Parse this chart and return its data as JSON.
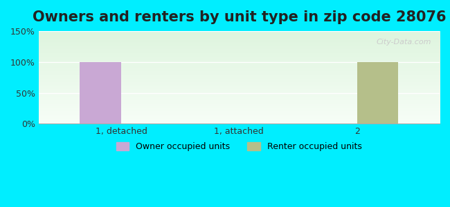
{
  "title": "Owners and renters by unit type in zip code 28076",
  "categories": [
    "1, detached",
    "1, attached",
    "2"
  ],
  "owner_values": [
    100,
    0,
    0
  ],
  "renter_values": [
    0,
    0,
    100
  ],
  "owner_color": "#c9a8d4",
  "renter_color": "#b5bf8a",
  "ylim": [
    0,
    150
  ],
  "yticks": [
    0,
    50,
    100,
    150
  ],
  "ytick_labels": [
    "0%",
    "50%",
    "100%",
    "150%"
  ],
  "bg_outer": "#00eeff",
  "title_fontsize": 15,
  "legend_labels": [
    "Owner occupied units",
    "Renter occupied units"
  ],
  "bar_width": 0.35,
  "watermark": "City-Data.com"
}
